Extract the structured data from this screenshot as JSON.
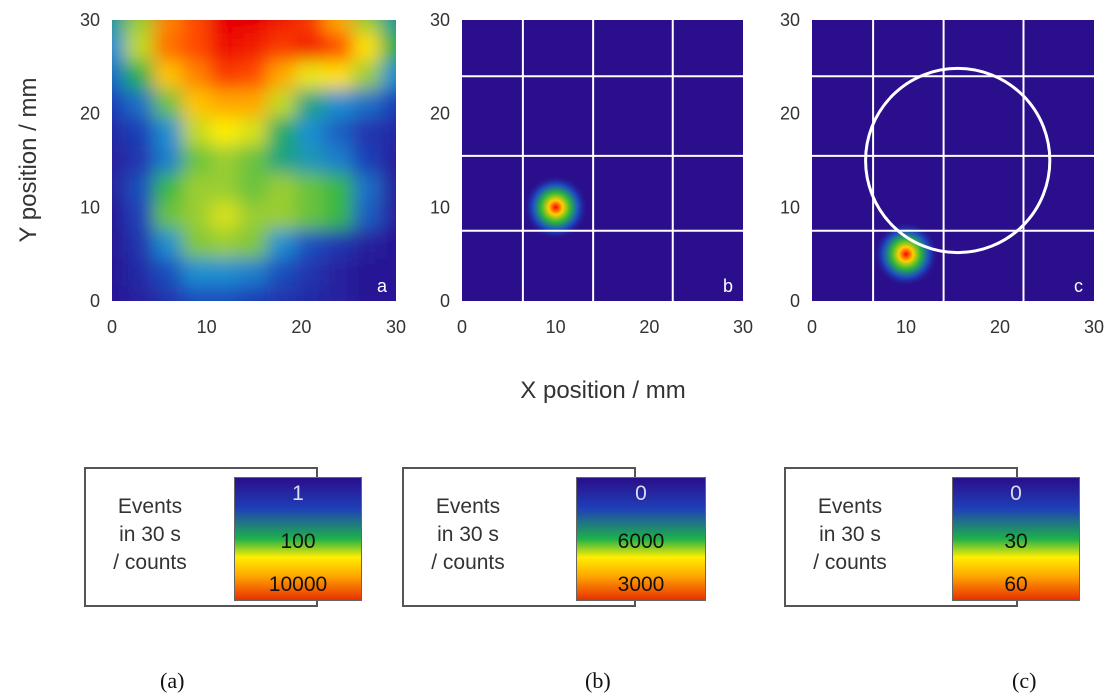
{
  "chart_data": [
    {
      "type": "heatmap",
      "panel_letter": "a",
      "xlabel": "X position / mm",
      "ylabel": "Y position / mm",
      "xlim": [
        0,
        30
      ],
      "ylim": [
        0,
        30
      ],
      "xticks": [
        0,
        10,
        20,
        30
      ],
      "yticks": [
        0,
        10,
        20,
        30
      ],
      "x": [
        0,
        3,
        6,
        9,
        12,
        15,
        18,
        21,
        24,
        27,
        30
      ],
      "y": [
        30,
        27,
        24,
        21,
        18,
        15,
        12,
        9,
        6,
        3,
        0
      ],
      "z_scale": "log",
      "z": [
        [
          1.2,
          2.0,
          3.2,
          3.5,
          4.0,
          4.0,
          3.8,
          3.6,
          3.0,
          2.0,
          1.2
        ],
        [
          1.0,
          2.2,
          3.3,
          3.5,
          3.9,
          3.8,
          3.6,
          3.8,
          3.5,
          2.6,
          1.5
        ],
        [
          0.8,
          1.5,
          2.8,
          3.2,
          3.6,
          3.5,
          3.0,
          2.4,
          2.6,
          2.0,
          1.0
        ],
        [
          0.5,
          0.8,
          1.8,
          2.8,
          3.0,
          3.0,
          2.2,
          1.3,
          1.0,
          0.8,
          0.5
        ],
        [
          0.3,
          0.5,
          1.0,
          2.2,
          2.5,
          2.3,
          1.4,
          1.0,
          0.7,
          0.4,
          0.3
        ],
        [
          0.2,
          0.4,
          0.9,
          1.8,
          2.0,
          1.8,
          1.3,
          1.1,
          0.9,
          0.5,
          0.2
        ],
        [
          0.2,
          0.6,
          1.6,
          2.0,
          2.0,
          1.8,
          2.0,
          1.8,
          1.6,
          0.8,
          0.2
        ],
        [
          0.1,
          0.5,
          1.8,
          2.0,
          2.3,
          2.0,
          2.0,
          1.8,
          1.6,
          0.7,
          0.2
        ],
        [
          0.1,
          0.4,
          1.0,
          1.9,
          2.0,
          1.9,
          1.0,
          0.6,
          0.4,
          0.2,
          0.1
        ],
        [
          0.1,
          0.3,
          0.6,
          1.0,
          1.0,
          0.9,
          0.6,
          0.4,
          0.2,
          0.1,
          0.1
        ],
        [
          0.1,
          0.2,
          0.4,
          0.6,
          0.6,
          0.5,
          0.4,
          0.3,
          0.2,
          0.1,
          0.1
        ]
      ],
      "grid": false
    },
    {
      "type": "heatmap",
      "panel_letter": "b",
      "xlim": [
        0,
        30
      ],
      "ylim": [
        0,
        30
      ],
      "xticks": [
        0,
        10,
        20,
        30
      ],
      "yticks": [
        0,
        10,
        20,
        30
      ],
      "hotspot": {
        "x": 10,
        "y": 10,
        "sigma": 1.2
      },
      "grid": true,
      "grid_x": [
        6.5,
        14,
        22.5
      ],
      "grid_y": [
        24,
        15.5,
        7.5
      ]
    },
    {
      "type": "heatmap",
      "panel_letter": "c",
      "xlim": [
        0,
        30
      ],
      "ylim": [
        0,
        30
      ],
      "xticks": [
        0,
        10,
        20,
        30
      ],
      "yticks": [
        0,
        10,
        20,
        30
      ],
      "hotspot": {
        "x": 10,
        "y": 5,
        "sigma": 1.2
      },
      "grid": true,
      "grid_x": [
        6.5,
        14,
        22.5
      ],
      "grid_y": [
        24,
        15.5,
        7.5
      ],
      "circle": {
        "cx": 15.5,
        "cy": 15,
        "r": 9.8
      }
    }
  ],
  "legends": [
    {
      "text": [
        "Events",
        "in 30 s",
        "/ counts"
      ],
      "values": [
        "1",
        "100",
        "10000"
      ]
    },
    {
      "text": [
        "Events",
        "in 30 s",
        "/ counts"
      ],
      "values": [
        "0",
        "6000",
        "3000"
      ]
    },
    {
      "text": [
        "Events",
        "in 30 s",
        "/ counts"
      ],
      "values": [
        "0",
        "30",
        "60"
      ]
    }
  ],
  "subfigure_labels": [
    "(a)",
    "(b)",
    "(c)"
  ],
  "colors": {
    "background": "#2a0e8c",
    "grid": "#ffffff",
    "colormap": [
      "#2a0e8c",
      "#1f3fb8",
      "#1a8fd0",
      "#1fb14a",
      "#9acd32",
      "#ffee00",
      "#ffa800",
      "#ff4a00",
      "#e80000"
    ]
  }
}
